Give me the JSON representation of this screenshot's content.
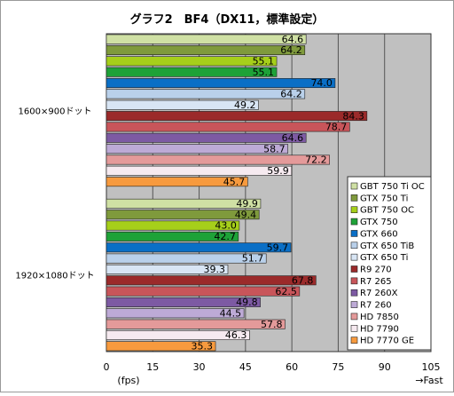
{
  "chart_data": {
    "type": "bar",
    "orientation": "horizontal",
    "title": "グラフ2　BF4（DX11，標準設定）",
    "xlabel": "(fps)",
    "x_direction_label": "→Fast",
    "xlim": [
      0,
      105
    ],
    "xticks": [
      "0",
      "15",
      "30",
      "45",
      "60",
      "75",
      "90",
      "105"
    ],
    "grid": true,
    "legend_position": "right",
    "groups": [
      "1600×900ドット",
      "1920×1080ドット"
    ],
    "series": [
      {
        "name": "GBT 750 Ti OC",
        "color": "#cfe0a4",
        "values": [
          64.6,
          49.9
        ]
      },
      {
        "name": "GTX 750 Ti",
        "color": "#7f9a3c",
        "values": [
          64.2,
          49.4
        ]
      },
      {
        "name": "GBT 750 OC",
        "color": "#a6cf1a",
        "values": [
          55.1,
          43.0
        ]
      },
      {
        "name": "GTX 750",
        "color": "#1ea238",
        "values": [
          55.1,
          42.7
        ]
      },
      {
        "name": "GTX 660",
        "color": "#0a6fc6",
        "values": [
          74.0,
          59.7
        ]
      },
      {
        "name": "GTX 650 TiB",
        "color": "#b9d0ea",
        "values": [
          64.2,
          51.7
        ]
      },
      {
        "name": "GTX 650 Ti",
        "color": "#d8e5f4",
        "values": [
          49.2,
          39.3
        ]
      },
      {
        "name": "R9 270",
        "color": "#9b2a2a",
        "values": [
          84.3,
          67.8
        ]
      },
      {
        "name": "R7 265",
        "color": "#c8555a",
        "values": [
          78.7,
          62.5
        ]
      },
      {
        "name": "R7 260X",
        "color": "#7d5aa3",
        "values": [
          64.6,
          49.8
        ]
      },
      {
        "name": "R7 260",
        "color": "#bdaad6",
        "values": [
          58.7,
          44.5
        ]
      },
      {
        "name": "HD 7850",
        "color": "#e49a9a",
        "values": [
          72.2,
          57.8
        ]
      },
      {
        "name": "HD 7790",
        "color": "#f6eaf0",
        "values": [
          59.9,
          46.3
        ]
      },
      {
        "name": "HD 7770 GE",
        "color": "#f79a3e",
        "values": [
          45.7,
          35.3
        ]
      }
    ]
  }
}
